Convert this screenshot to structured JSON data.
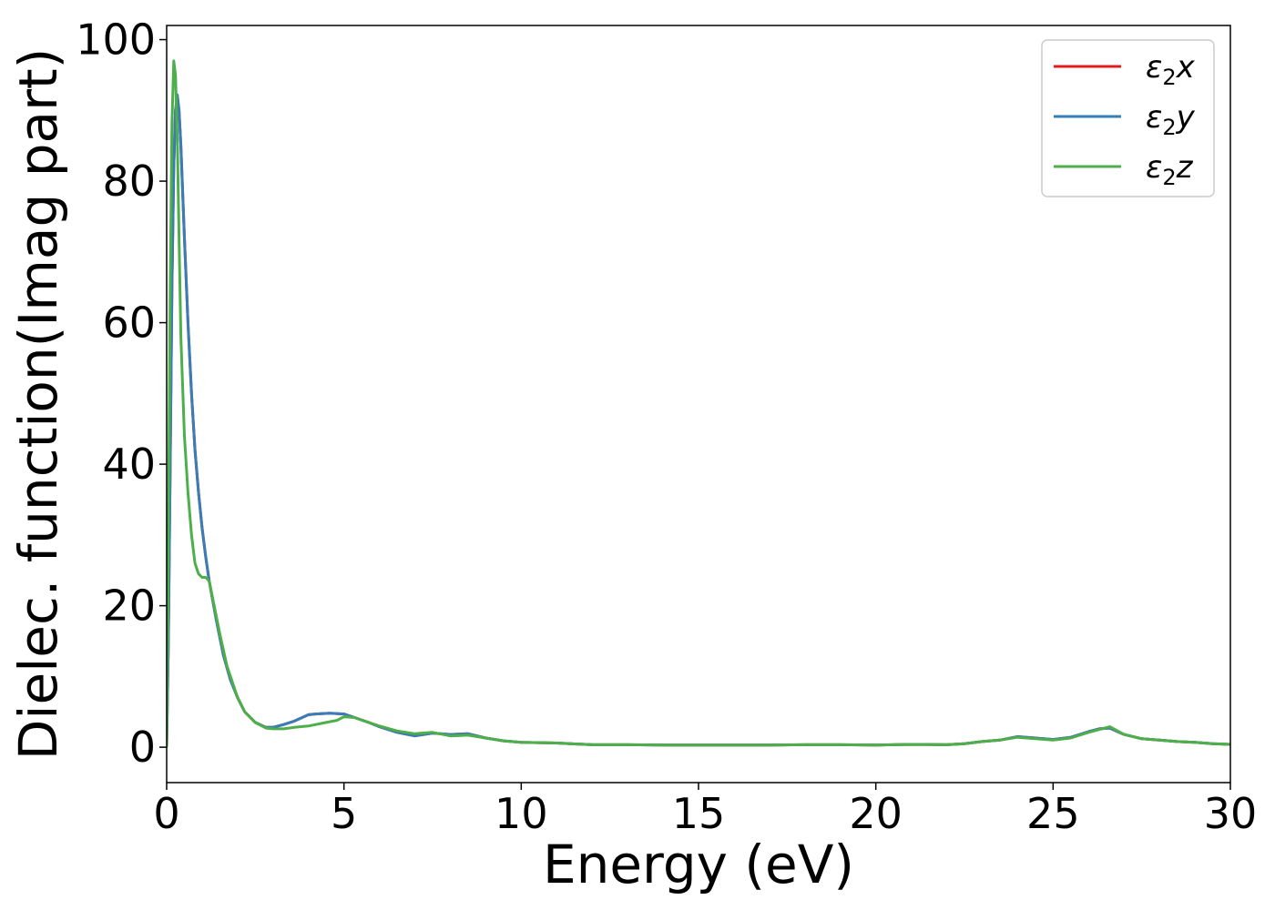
{
  "chart_data": {
    "type": "line",
    "title": "",
    "xlabel": "Energy (eV)",
    "ylabel": "Dielec. function(Imag part)",
    "xlim": [
      0,
      30
    ],
    "ylim": [
      -5,
      102
    ],
    "xticks": [
      0,
      5,
      10,
      15,
      20,
      25,
      30
    ],
    "yticks": [
      0,
      20,
      40,
      60,
      80,
      100
    ],
    "grid": false,
    "legend_position": "top-right",
    "series": [
      {
        "name": "ε2x",
        "legend": {
          "base": "ε",
          "sub": "2",
          "tail": "x"
        },
        "color": "#e41a1c",
        "x": [
          0,
          0.05,
          0.1,
          0.15,
          0.2,
          0.25,
          0.3,
          0.35,
          0.4,
          0.5,
          0.6,
          0.7,
          0.8,
          0.9,
          1.0,
          1.1,
          1.2,
          1.4,
          1.6,
          1.8,
          2.0,
          2.2,
          2.5,
          2.8,
          3.0,
          3.3,
          3.6,
          4.0,
          4.2,
          4.6,
          5.0,
          5.3,
          5.7,
          6.0,
          6.5,
          7.0,
          7.5,
          8.0,
          8.5,
          9.0,
          9.5,
          10.0,
          11.0,
          12.0,
          13.0,
          14.0,
          15.0,
          16.0,
          17.0,
          18.0,
          19.0,
          20.0,
          21.0,
          22.0,
          22.5,
          23.0,
          23.5,
          24.0,
          24.5,
          25.0,
          25.5,
          26.0,
          26.3,
          26.6,
          27.0,
          27.5,
          28.0,
          28.5,
          29.0,
          29.5,
          30.0
        ],
        "values": [
          0,
          15,
          40,
          65,
          82,
          90,
          92,
          90,
          85,
          72,
          60,
          50,
          42,
          36,
          31,
          27,
          23.5,
          18,
          13,
          9.5,
          7,
          5,
          3.5,
          2.8,
          2.8,
          3.2,
          3.7,
          4.6,
          4.7,
          4.8,
          4.7,
          4.2,
          3.5,
          2.9,
          2.1,
          1.6,
          2.0,
          1.8,
          1.9,
          1.3,
          0.9,
          0.7,
          0.6,
          0.35,
          0.35,
          0.3,
          0.3,
          0.3,
          0.3,
          0.35,
          0.35,
          0.3,
          0.4,
          0.35,
          0.5,
          0.8,
          1.0,
          1.5,
          1.3,
          1.1,
          1.4,
          2.2,
          2.6,
          2.7,
          1.8,
          1.2,
          1.0,
          0.8,
          0.7,
          0.5,
          0.4
        ]
      },
      {
        "name": "ε2y",
        "legend": {
          "base": "ε",
          "sub": "2",
          "tail": "y"
        },
        "color": "#377eb8",
        "x": [
          0,
          0.05,
          0.1,
          0.15,
          0.2,
          0.25,
          0.3,
          0.35,
          0.4,
          0.5,
          0.6,
          0.7,
          0.8,
          0.9,
          1.0,
          1.1,
          1.2,
          1.4,
          1.6,
          1.8,
          2.0,
          2.2,
          2.5,
          2.8,
          3.0,
          3.3,
          3.6,
          4.0,
          4.2,
          4.6,
          5.0,
          5.3,
          5.7,
          6.0,
          6.5,
          7.0,
          7.5,
          8.0,
          8.5,
          9.0,
          9.5,
          10.0,
          11.0,
          12.0,
          13.0,
          14.0,
          15.0,
          16.0,
          17.0,
          18.0,
          19.0,
          20.0,
          21.0,
          22.0,
          22.5,
          23.0,
          23.5,
          24.0,
          24.5,
          25.0,
          25.5,
          26.0,
          26.3,
          26.6,
          27.0,
          27.5,
          28.0,
          28.5,
          29.0,
          29.5,
          30.0
        ],
        "values": [
          0,
          15,
          40,
          65,
          82,
          90,
          92.2,
          90,
          85,
          72,
          60,
          50,
          42,
          36,
          31,
          27,
          23.5,
          18,
          13,
          9.5,
          7,
          5,
          3.5,
          2.8,
          2.8,
          3.2,
          3.7,
          4.6,
          4.7,
          4.8,
          4.7,
          4.2,
          3.5,
          2.9,
          2.1,
          1.6,
          2.0,
          1.8,
          1.9,
          1.3,
          0.9,
          0.7,
          0.6,
          0.35,
          0.35,
          0.3,
          0.3,
          0.3,
          0.3,
          0.35,
          0.35,
          0.3,
          0.4,
          0.35,
          0.5,
          0.8,
          1.0,
          1.5,
          1.3,
          1.1,
          1.4,
          2.2,
          2.6,
          2.7,
          1.8,
          1.2,
          1.0,
          0.8,
          0.7,
          0.5,
          0.4
        ]
      },
      {
        "name": "ε2z",
        "legend": {
          "base": "ε",
          "sub": "2",
          "tail": "z"
        },
        "color": "#4daf4a",
        "x": [
          0,
          0.05,
          0.1,
          0.15,
          0.2,
          0.25,
          0.3,
          0.35,
          0.4,
          0.5,
          0.6,
          0.7,
          0.8,
          0.9,
          1.0,
          1.1,
          1.2,
          1.3,
          1.5,
          1.7,
          2.0,
          2.2,
          2.5,
          2.8,
          3.0,
          3.3,
          3.6,
          4.0,
          4.5,
          4.8,
          5.0,
          5.3,
          5.7,
          6.0,
          6.5,
          7.0,
          7.5,
          8.0,
          8.5,
          9.0,
          9.5,
          10.0,
          11.0,
          12.0,
          13.0,
          14.0,
          15.0,
          16.0,
          17.0,
          18.0,
          19.0,
          20.0,
          21.0,
          22.0,
          22.5,
          23.0,
          23.5,
          24.0,
          24.5,
          25.0,
          25.5,
          26.0,
          26.3,
          26.6,
          27.0,
          27.5,
          28.0,
          28.5,
          29.0,
          29.5,
          30.0
        ],
        "values": [
          0,
          30,
          65,
          88,
          97,
          95,
          86,
          72,
          58,
          44,
          36,
          30,
          26,
          24.5,
          24,
          24,
          23.5,
          21,
          16,
          11.5,
          7,
          5,
          3.5,
          2.7,
          2.6,
          2.6,
          2.8,
          3.0,
          3.5,
          3.8,
          4.3,
          4.2,
          3.5,
          3.0,
          2.3,
          1.9,
          2.1,
          1.6,
          1.7,
          1.3,
          0.9,
          0.7,
          0.6,
          0.35,
          0.35,
          0.3,
          0.3,
          0.3,
          0.3,
          0.35,
          0.35,
          0.3,
          0.4,
          0.35,
          0.5,
          0.8,
          1.0,
          1.4,
          1.2,
          1.0,
          1.3,
          2.1,
          2.5,
          2.9,
          1.8,
          1.2,
          1.0,
          0.8,
          0.7,
          0.5,
          0.4
        ]
      }
    ]
  }
}
